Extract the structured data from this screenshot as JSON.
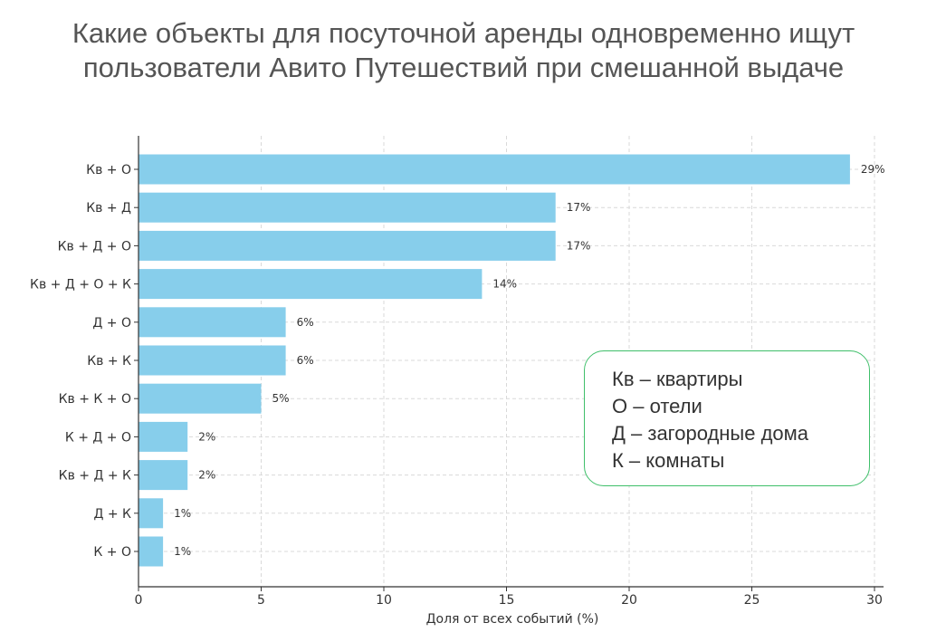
{
  "title": {
    "line1": "Какие объекты для посуточной аренды одновременно ищут",
    "line2": "пользователи Авито Путешествий при смешанной выдаче"
  },
  "legend": {
    "items": [
      "Кв – квартиры",
      "О – отели",
      "Д – загородные дома",
      "К – комнаты"
    ]
  },
  "chart_data": {
    "type": "bar",
    "orientation": "horizontal",
    "categories": [
      "Кв + О",
      "Кв + Д",
      "Кв + Д + О",
      "Кв + Д + О + К",
      "Д + О",
      "Кв + К",
      "Кв + К + О",
      "К + Д + О",
      "Кв + Д + К",
      "Д + К",
      "К + О"
    ],
    "values": [
      29,
      17,
      17,
      14,
      6,
      6,
      5,
      2,
      2,
      1,
      1
    ],
    "value_labels": [
      "29%",
      "17%",
      "17%",
      "14%",
      "6%",
      "6%",
      "5%",
      "2%",
      "2%",
      "1%",
      "1%"
    ],
    "xlabel": "Доля от всех событий (%)",
    "ylabel": "",
    "xlim": [
      0,
      30
    ],
    "xticks": [
      0,
      5,
      10,
      15,
      20,
      25,
      30
    ],
    "grid": true,
    "bar_color": "#87ceeb",
    "legend_border_color": "#3fbf6a"
  }
}
